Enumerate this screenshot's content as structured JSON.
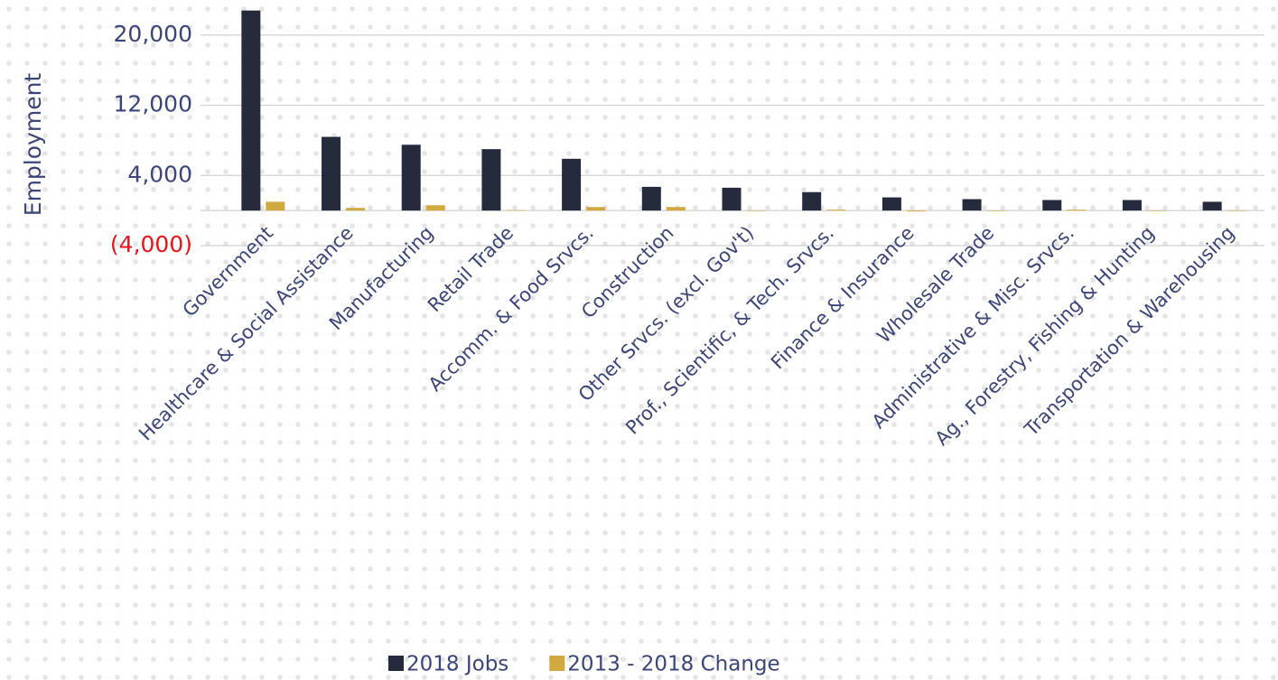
{
  "chart_data": {
    "type": "bar",
    "y_label": "Employment",
    "categories": [
      "Government",
      "Healthcare & Social Assistance",
      "Manufacturing",
      "Retail Trade",
      "Accomm. & Food Srvcs.",
      "Construction",
      "Other Srvcs. (excl. Gov't)",
      "Prof., Scientific, & Tech. Srvcs.",
      "Finance & Insurance",
      "Wholesale Trade",
      "Administrative & Misc. Srvcs.",
      "Ag., Forestry, Fishing & Hunting",
      "Transportation & Warehousing"
    ],
    "series": [
      {
        "name": "2018 Jobs",
        "color": "#262a3d",
        "values": [
          22800,
          8400,
          7500,
          7000,
          5900,
          2700,
          2600,
          2100,
          1500,
          1300,
          1200,
          1200,
          1000
        ]
      },
      {
        "name": "2013 - 2018 Change",
        "color": "#d2a93f",
        "values": [
          1000,
          300,
          600,
          50,
          400,
          400,
          -50,
          100,
          -100,
          -50,
          100,
          -50,
          0
        ]
      }
    ],
    "ylim": [
      -4000,
      24000
    ],
    "yticks": [
      {
        "value": -4000,
        "label": "(4,000)"
      },
      {
        "value": 4000,
        "label": "4,000"
      },
      {
        "value": 12000,
        "label": "12,000"
      },
      {
        "value": 20000,
        "label": "20,000"
      }
    ],
    "grid": true,
    "legend": "bottom"
  }
}
